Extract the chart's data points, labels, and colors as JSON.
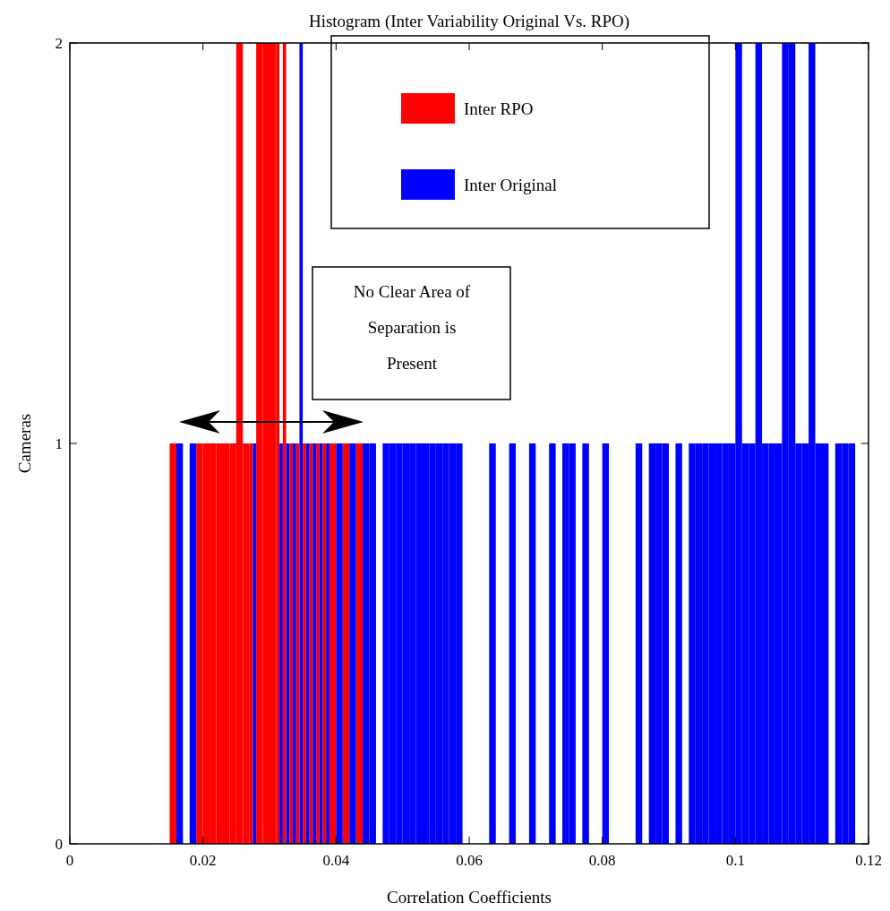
{
  "chart_data": {
    "type": "histogram",
    "title": "Histogram (Inter Variability Original Vs. RPO)",
    "xlabel": "Correlation Coefficients",
    "ylabel": "Cameras",
    "bins": [
      0.015,
      0.016,
      0.017,
      0.018,
      0.019,
      0.02,
      0.021,
      0.022,
      0.023,
      0.024,
      0.025,
      0.026,
      0.027,
      0.028,
      0.029,
      0.03,
      0.031,
      0.032,
      0.033,
      0.034,
      0.035,
      0.036,
      0.037,
      0.038,
      0.039,
      0.04,
      0.041,
      0.042,
      0.043,
      0.044,
      0.045,
      0.046,
      0.047,
      0.048,
      0.049,
      0.05,
      0.051,
      0.052,
      0.053,
      0.054,
      0.055,
      0.056,
      0.057,
      0.058,
      0.059,
      0.06,
      0.061,
      0.062,
      0.063,
      0.064,
      0.065,
      0.066,
      0.067,
      0.068,
      0.069,
      0.07,
      0.071,
      0.072,
      0.073,
      0.074,
      0.075,
      0.076,
      0.077,
      0.078,
      0.079,
      0.08,
      0.081,
      0.082,
      0.083,
      0.084,
      0.085,
      0.086,
      0.087,
      0.088,
      0.089,
      0.09,
      0.091,
      0.092,
      0.093,
      0.094,
      0.095,
      0.096,
      0.097,
      0.098,
      0.099,
      0.1,
      0.101,
      0.102,
      0.103,
      0.104,
      0.105,
      0.106,
      0.107,
      0.108,
      0.109,
      0.11,
      0.111,
      0.112,
      0.113,
      0.114,
      0.115,
      0.116,
      0.117,
      0.118,
      0.119,
      0.12
    ],
    "series": [
      {
        "name": "Inter RPO",
        "color": "#ff0000",
        "values": [
          1,
          0,
          0,
          0,
          1,
          1,
          1,
          1,
          1,
          1,
          2,
          1,
          1,
          2,
          2,
          2,
          2,
          2,
          1,
          1,
          1,
          1,
          1,
          1,
          1,
          0,
          1,
          0,
          1,
          0,
          0,
          0,
          0,
          0,
          0,
          0,
          0,
          0,
          0,
          0,
          0,
          0,
          0,
          0,
          0,
          0,
          0,
          0,
          0,
          0,
          0,
          0,
          0,
          0,
          0,
          0,
          0,
          0,
          0,
          0,
          0,
          0,
          0,
          0,
          0,
          0,
          0,
          0,
          0,
          0,
          0,
          0,
          0,
          0,
          0,
          0,
          0,
          0,
          0,
          0,
          0,
          0,
          0,
          0,
          0,
          0,
          0,
          0,
          0,
          0,
          0,
          0,
          0,
          0,
          0,
          0,
          0,
          0,
          0,
          0,
          0,
          0,
          0,
          0,
          0
        ]
      },
      {
        "name": "Inter Original",
        "color": "#0000ff",
        "values": [
          0,
          1,
          0,
          1,
          0,
          0,
          0,
          0,
          0,
          0,
          0,
          0,
          1,
          0,
          0,
          0,
          1,
          1,
          1,
          2,
          1,
          1,
          1,
          1,
          0,
          1,
          0,
          1,
          0,
          1,
          1,
          0,
          1,
          1,
          1,
          1,
          1,
          1,
          1,
          1,
          1,
          1,
          1,
          1,
          0,
          0,
          0,
          0,
          1,
          0,
          0,
          1,
          0,
          0,
          1,
          0,
          0,
          1,
          0,
          1,
          1,
          0,
          1,
          0,
          0,
          1,
          0,
          0,
          0,
          0,
          1,
          0,
          1,
          1,
          1,
          0,
          1,
          0,
          1,
          1,
          1,
          1,
          1,
          1,
          1,
          2,
          1,
          1,
          2,
          1,
          1,
          1,
          2,
          2,
          1,
          1,
          2,
          1,
          1,
          0,
          1,
          1,
          1,
          0,
          0
        ]
      }
    ],
    "xlim": [
      0,
      0.12
    ],
    "xticks": [
      0,
      0.02,
      0.04,
      0.06,
      0.08,
      0.1,
      0.12
    ],
    "ylim": [
      0,
      2
    ],
    "yticks": [
      0,
      1,
      2
    ],
    "legend": "top",
    "annotations": [
      "No Clear Area of Separation is Present"
    ]
  }
}
